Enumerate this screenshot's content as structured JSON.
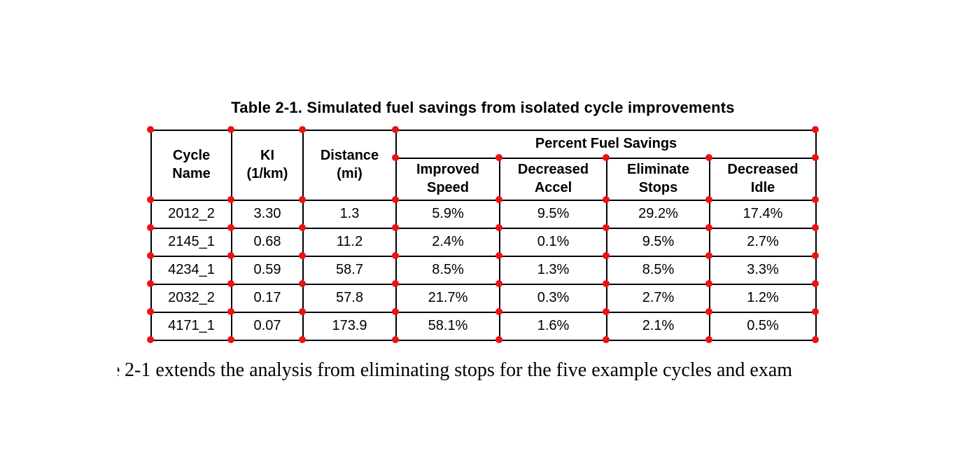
{
  "page": {
    "background": "#ffffff"
  },
  "table": {
    "title": "Table 2-1. Simulated fuel savings from isolated cycle improvements",
    "header": {
      "cycle_name": "Cycle\nName",
      "ki": "KI\n(1/km)",
      "distance": "Distance\n(mi)",
      "group": "Percent Fuel Savings",
      "sub": [
        "Improved\nSpeed",
        "Decreased\nAccel",
        "Eliminate\nStops",
        "Decreased\nIdle"
      ]
    },
    "rows": [
      [
        "2012_2",
        "3.30",
        "1.3",
        "5.9%",
        "9.5%",
        "29.2%",
        "17.4%"
      ],
      [
        "2145_1",
        "0.68",
        "11.2",
        "2.4%",
        "0.1%",
        "9.5%",
        "2.7%"
      ],
      [
        "4234_1",
        "0.59",
        "58.7",
        "8.5%",
        "1.3%",
        "8.5%",
        "3.3%"
      ],
      [
        "2032_2",
        "0.17",
        "57.8",
        "21.7%",
        "0.3%",
        "2.7%",
        "1.2%"
      ],
      [
        "4171_1",
        "0.07",
        "173.9",
        "58.1%",
        "1.6%",
        "2.1%",
        "0.5%"
      ]
    ]
  },
  "body": {
    "partial_glyph": "e",
    "text": "2-1 extends the analysis from eliminating stops for the five example cycles and exam"
  },
  "annotation": {
    "dot_color": "#ee1111"
  }
}
